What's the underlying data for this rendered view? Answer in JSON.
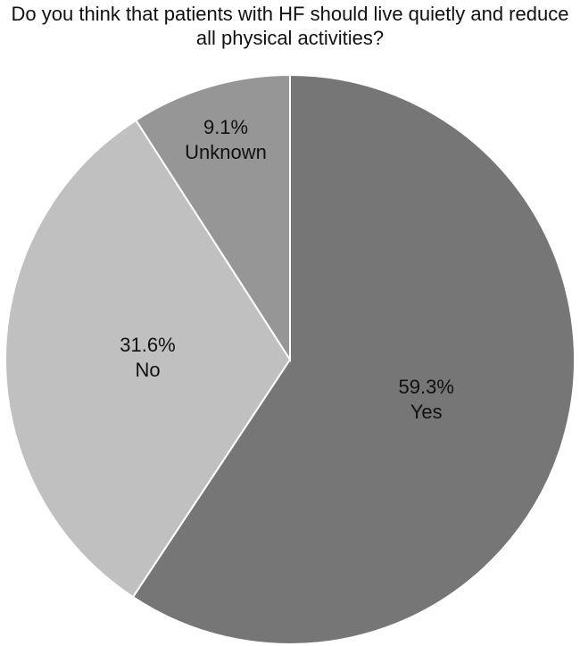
{
  "chart_data": {
    "type": "pie",
    "title": "Do you think that patients with HF should live quietly and reduce all physical activities?",
    "categories": [
      "Yes",
      "No",
      "Unknown"
    ],
    "values": [
      59.3,
      31.6,
      9.1
    ],
    "value_labels": [
      "59.3%",
      "31.6%",
      "9.1%"
    ],
    "colors": [
      "#767676",
      "#c0c0c0",
      "#969696"
    ]
  }
}
